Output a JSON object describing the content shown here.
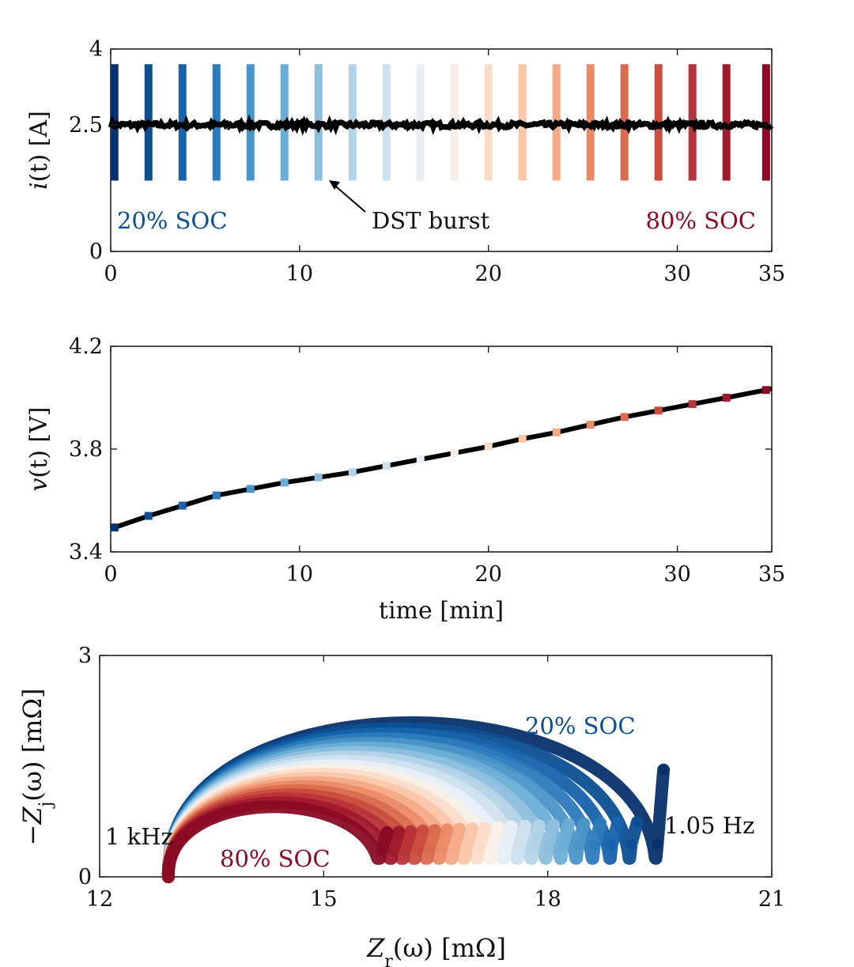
{
  "chart_data": [
    {
      "id": "current",
      "type": "line",
      "ylabel": "i(t) [A]",
      "xlim": [
        0,
        35
      ],
      "ylim": [
        0,
        4
      ],
      "xticks": [
        "0",
        "10",
        "20",
        "30",
        "35"
      ],
      "yticks": [
        "0",
        "2.5",
        "4"
      ],
      "series": [
        {
          "name": "charge current",
          "baseline_A": 2.5,
          "color": "#000000"
        },
        {
          "name": "DST burst",
          "times_min": [
            0.2,
            2.0,
            3.8,
            5.6,
            7.4,
            9.2,
            11.0,
            12.8,
            14.6,
            16.4,
            18.2,
            20.0,
            21.8,
            23.6,
            25.4,
            27.2,
            29.0,
            30.8,
            32.6,
            34.7
          ],
          "i_min": 1.4,
          "i_max": 3.7
        }
      ],
      "annotations": {
        "left": "20% SOC",
        "right": "80% SOC",
        "arrow": "DST burst"
      }
    },
    {
      "id": "voltage",
      "type": "line",
      "xlabel": "time [min]",
      "ylabel": "v(t) [V]",
      "xlim": [
        0,
        35
      ],
      "ylim": [
        3.4,
        4.2
      ],
      "xticks": [
        "0",
        "10",
        "20",
        "30",
        "35"
      ],
      "yticks": [
        "3.4",
        "3.8",
        "4.2"
      ],
      "series": [
        {
          "name": "terminal voltage",
          "x": [
            0.2,
            2.0,
            3.8,
            5.6,
            7.4,
            9.2,
            11.0,
            12.8,
            14.6,
            16.4,
            18.2,
            20.0,
            21.8,
            23.6,
            25.4,
            27.2,
            29.0,
            30.8,
            32.6,
            34.7
          ],
          "y": [
            3.495,
            3.54,
            3.58,
            3.62,
            3.645,
            3.67,
            3.69,
            3.71,
            3.735,
            3.76,
            3.785,
            3.81,
            3.84,
            3.865,
            3.895,
            3.925,
            3.95,
            3.975,
            4.0,
            4.03
          ]
        }
      ]
    },
    {
      "id": "impedance",
      "type": "scatter",
      "xlabel": "Zr(ω) [mΩ]",
      "ylabel": "−Zj(ω) [mΩ]",
      "xlim": [
        12,
        21
      ],
      "ylim": [
        0,
        3
      ],
      "xticks": [
        "12",
        "15",
        "18",
        "21"
      ],
      "yticks": [
        "0",
        "3"
      ],
      "series_count": 20,
      "series_start": {
        "R0": 12.92,
        "Rmax_min": 15.8,
        "Rmax_max": 19.5,
        "peak_min": 0.95,
        "peak_max": 2.09
      },
      "annotations": {
        "top": "20% SOC",
        "bottom": "80% SOC",
        "high_freq": "1 kHz",
        "low_freq": "1.05 Hz"
      }
    }
  ],
  "colors": [
    "#08306b",
    "#0b4f92",
    "#1763ac",
    "#2c7bba",
    "#4a94c6",
    "#6aaed6",
    "#8dbfdd",
    "#b4d3e7",
    "#cfe1ef",
    "#e8eef5",
    "#f7efe8",
    "#fcdcc9",
    "#fbc5a8",
    "#f6aa86",
    "#ea8b67",
    "#da6b50",
    "#c94d3e",
    "#b8333a",
    "#a01a2d",
    "#8a0b25"
  ],
  "labels": {
    "p1_ylabel_main": "i",
    "p1_ylabel_rest": "(t) [A]",
    "p2_ylabel_main": "v",
    "p2_ylabel_rest": "(t) [V]",
    "p2_xlabel": "time [min]",
    "p3_ylabel_sign": "−",
    "p3_ylabel_main": "Z",
    "p3_ylabel_sub": "j",
    "p3_ylabel_rest": "(ω) [mΩ]",
    "p3_xlabel_main": "Z",
    "p3_xlabel_sub": "r",
    "p3_xlabel_rest": "(ω) [mΩ]"
  }
}
